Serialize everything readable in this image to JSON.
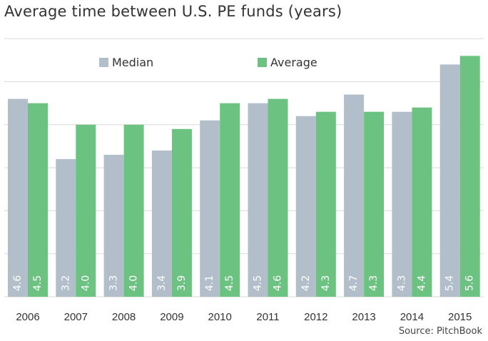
{
  "title": "Average time between U.S. PE funds (years)",
  "source": "Source: PitchBook",
  "colors": {
    "median": "#b2bfca",
    "average": "#6cc381",
    "grid": "#d9d9d9",
    "value_label": "#ffffff",
    "text": "#333333"
  },
  "chart_data": {
    "type": "bar",
    "title": "Average time between U.S. PE funds (years)",
    "xlabel": "",
    "ylabel": "",
    "ylim": [
      0,
      6
    ],
    "grid": true,
    "legend_placement": "top-left",
    "categories": [
      "2006",
      "2007",
      "2008",
      "2009",
      "2010",
      "2011",
      "2012",
      "2013",
      "2014",
      "2015"
    ],
    "series": [
      {
        "name": "Median",
        "color": "#b2bfca",
        "values": [
          4.6,
          3.2,
          3.3,
          3.4,
          4.1,
          4.5,
          4.2,
          4.7,
          4.3,
          5.4
        ]
      },
      {
        "name": "Average",
        "color": "#6cc381",
        "values": [
          4.5,
          4.0,
          4.0,
          3.9,
          4.5,
          4.6,
          4.3,
          4.3,
          4.4,
          5.6
        ]
      }
    ],
    "value_labels": {
      "Median": [
        "4.6",
        "3.2",
        "3.3",
        "3.4",
        "4.1",
        "4.5",
        "4.2",
        "4.7",
        "4.3",
        "5.4"
      ],
      "Average": [
        "4.5",
        "4.0",
        "4.0",
        "3.9",
        "4.5",
        "4.6",
        "4.3",
        "4.3",
        "4.4",
        "5.6"
      ]
    }
  }
}
